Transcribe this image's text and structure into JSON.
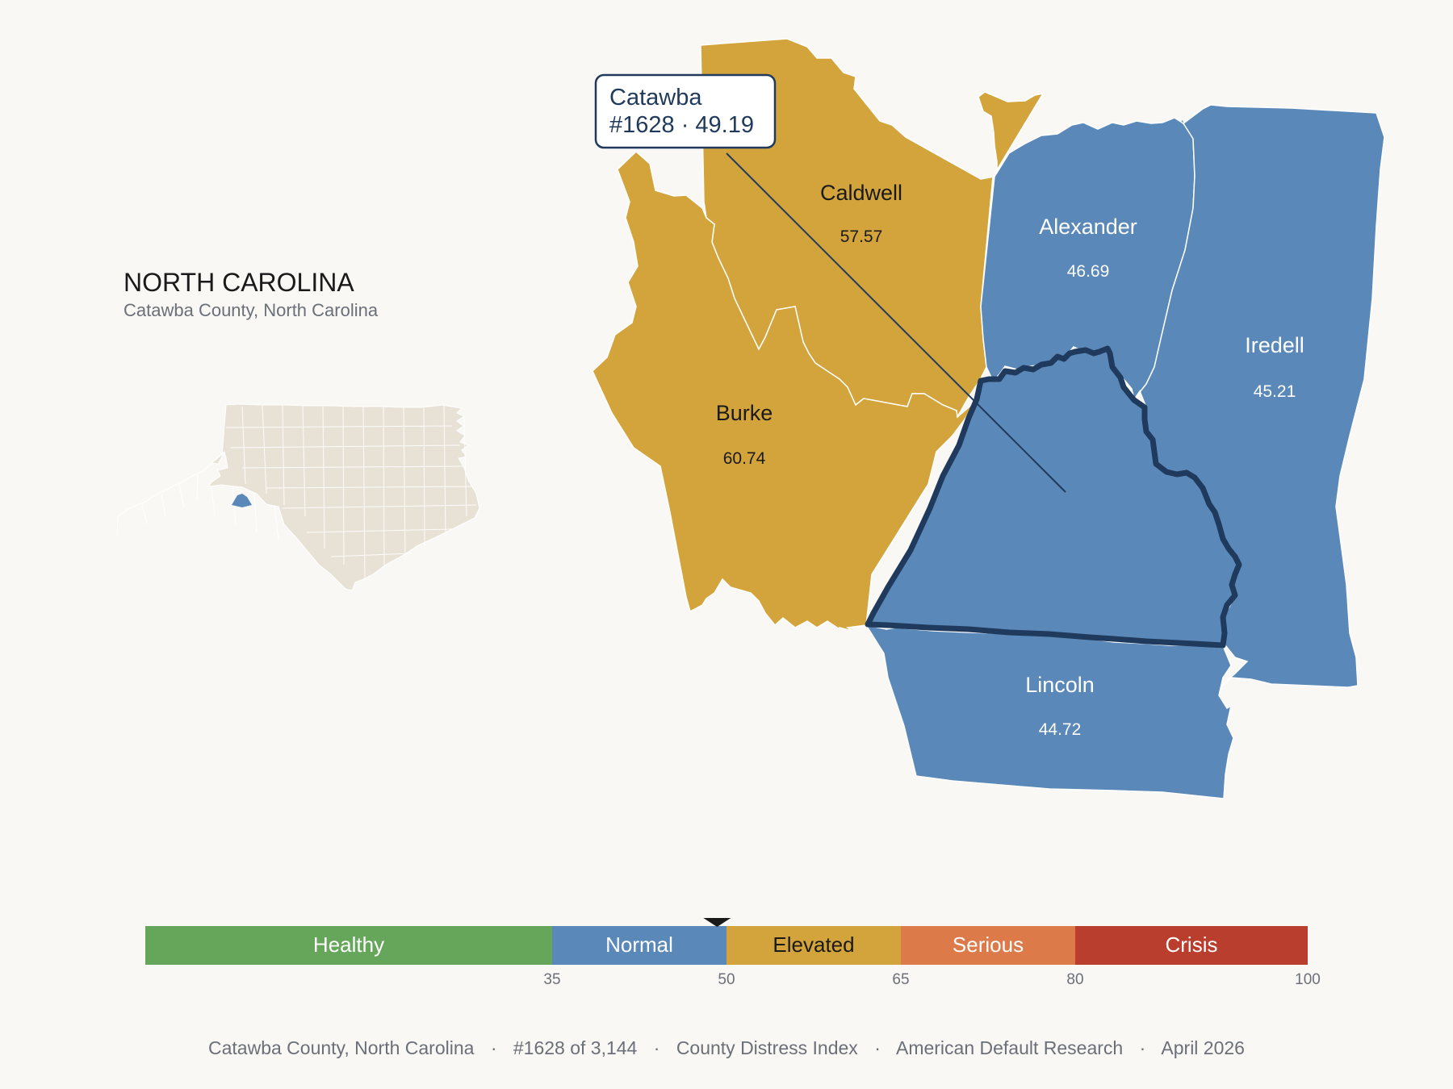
{
  "state": {
    "title": "NORTH CAROLINA",
    "subtitle": "Catawba County, North Carolina"
  },
  "callout": {
    "line1": "Catawba",
    "line2": "#1628 · 49.19"
  },
  "counties": [
    {
      "id": "caldwell",
      "name": "Caldwell",
      "score": "57.57",
      "category": "Elevated"
    },
    {
      "id": "burke",
      "name": "Burke",
      "score": "60.74",
      "category": "Elevated"
    },
    {
      "id": "alexander",
      "name": "Alexander",
      "score": "46.69",
      "category": "Normal"
    },
    {
      "id": "iredell",
      "name": "Iredell",
      "score": "45.21",
      "category": "Normal"
    },
    {
      "id": "lincoln",
      "name": "Lincoln",
      "score": "44.72",
      "category": "Normal"
    },
    {
      "id": "catawba",
      "name": "Catawba",
      "score": "49.19",
      "category": "Normal",
      "rank": "1628",
      "highlighted": true
    }
  ],
  "legend": {
    "segments": [
      {
        "label": "Healthy",
        "from": 0,
        "to": 35,
        "color": "#66a65a"
      },
      {
        "label": "Normal",
        "from": 35,
        "to": 50,
        "color": "#5a89b9"
      },
      {
        "label": "Elevated",
        "from": 50,
        "to": 65,
        "color": "#d3a43b"
      },
      {
        "label": "Serious",
        "from": 65,
        "to": 80,
        "color": "#dc7a4a"
      },
      {
        "label": "Crisis",
        "from": 80,
        "to": 100,
        "color": "#b93e2e"
      }
    ],
    "ticks": [
      "35",
      "50",
      "65",
      "80",
      "100"
    ],
    "marker_value": 49.19
  },
  "colors": {
    "normal": "#5a89b9",
    "elevated": "#d3a43b",
    "highlight_outline": "#1f3a5c",
    "inset_land": "#e8e2d6"
  },
  "footer": {
    "items": [
      "Catawba County, North Carolina",
      "#1628 of 3,144",
      "County Distress Index",
      "American Default Research",
      "April 2026"
    ],
    "separator": "·"
  }
}
